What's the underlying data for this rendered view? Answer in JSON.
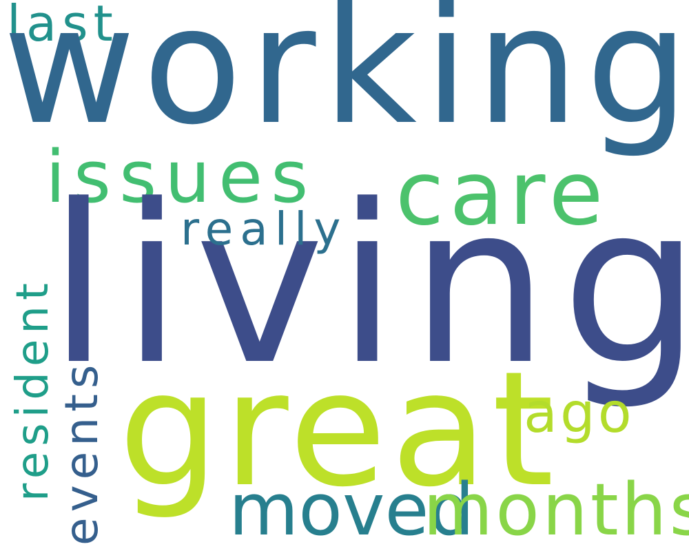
{
  "words": {
    "working": {
      "text": "working",
      "color": "#31678e"
    },
    "living": {
      "text": "living",
      "color": "#3d4d8a"
    },
    "great": {
      "text": "great",
      "color": "#bde029"
    },
    "care": {
      "text": "care",
      "color": "#4cc26c"
    },
    "issues": {
      "text": "issues",
      "color": "#42be71"
    },
    "really": {
      "text": "really",
      "color": "#2c708e"
    },
    "last": {
      "text": "last",
      "color": "#21918c"
    },
    "ago": {
      "text": "ago",
      "color": "#b3dc2b"
    },
    "moved": {
      "text": "moved",
      "color": "#277f8e"
    },
    "months": {
      "text": "months",
      "color": "#89d548"
    },
    "resident": {
      "text": "resident",
      "color": "#1f9e89"
    },
    "events": {
      "text": "events",
      "color": "#355f8d"
    }
  }
}
